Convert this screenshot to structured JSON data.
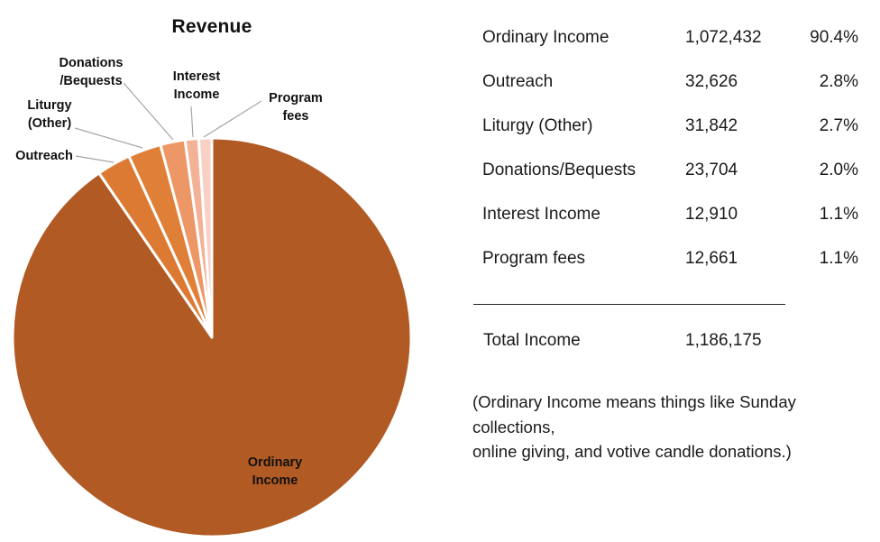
{
  "chart_data": {
    "type": "pie",
    "title": "Revenue",
    "categories": [
      "Ordinary Income",
      "Outreach",
      "Liturgy (Other)",
      "Donations/Bequests",
      "Interest Income",
      "Program fees"
    ],
    "values": [
      1072432,
      32626,
      31842,
      23704,
      12910,
      12661
    ],
    "percents": [
      "90.4%",
      "2.8%",
      "2.7%",
      "2.0%",
      "1.1%",
      "1.1%"
    ],
    "total": 1186175,
    "colors": [
      "#b15a24",
      "#dc7a33",
      "#e08038",
      "#ee9766",
      "#f3b295",
      "#f7d2c4"
    ],
    "slice_border_color": "#ffffff",
    "leader_line_color": "#a6a6a6",
    "start_angle_deg": 0,
    "direction": "clockwise",
    "legend": "none",
    "slice_labels": [
      "Ordinary\nIncome",
      "Outreach",
      "Liturgy\n(Other)",
      "Donations\n/Bequests",
      "Interest\nIncome",
      "Program\nfees"
    ]
  },
  "table": {
    "rows": [
      {
        "label": "Ordinary Income",
        "value": "1,072,432",
        "pct": "90.4%"
      },
      {
        "label": "Outreach",
        "value": "32,626",
        "pct": "2.8%"
      },
      {
        "label": "Liturgy (Other)",
        "value": "31,842",
        "pct": "2.7%"
      },
      {
        "label": "Donations/Bequests",
        "value": "23,704",
        "pct": "2.0%"
      },
      {
        "label": "Interest Income",
        "value": "12,910",
        "pct": "1.1%"
      },
      {
        "label": "Program fees",
        "value": "12,661",
        "pct": "1.1%"
      }
    ],
    "total": {
      "label": "Total Income",
      "value": "1,186,175"
    },
    "note": "(Ordinary Income means things like Sunday collections,\nonline giving, and votive candle donations.)"
  }
}
